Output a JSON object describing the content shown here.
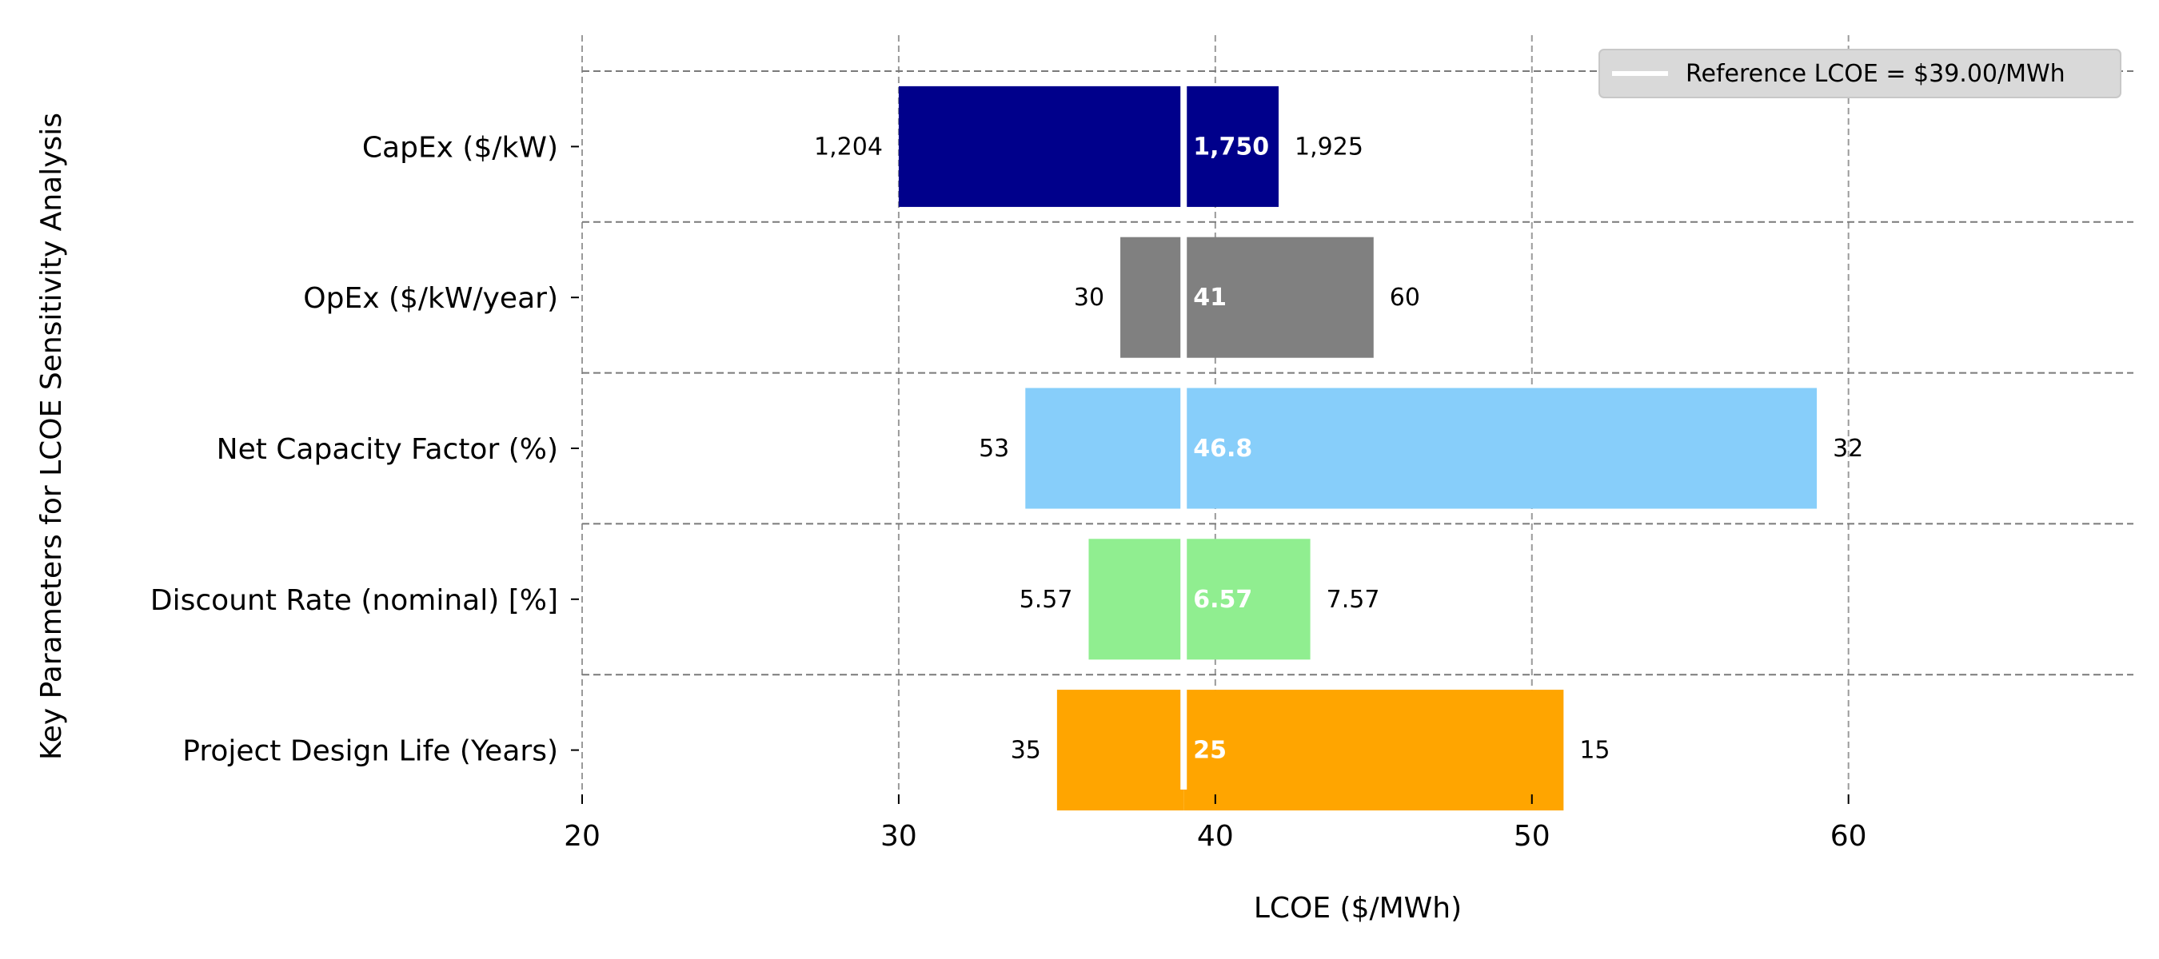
{
  "chart_data": {
    "type": "bar",
    "orientation": "horizontal",
    "chart_subtype": "tornado",
    "xlabel": "LCOE ($/MWh)",
    "ylabel": "Key Parameters for LCOE Sensitivity Analysis",
    "xlim": [
      20,
      69
    ],
    "xticks": [
      "20",
      "30",
      "40",
      "50",
      "60"
    ],
    "grid": true,
    "legend_position": "top-right",
    "reference": {
      "value": 39.0,
      "label": "Reference LCOE = $39.00/MWh",
      "color": "#ffffff"
    },
    "parameters": [
      {
        "name": "CapEx ($/kW)",
        "color": "#00008b",
        "low_lcoe": 30.0,
        "high_lcoe": 42.0,
        "low_label": "1,204",
        "base_label": "1,750",
        "high_label": "1,925"
      },
      {
        "name": "OpEx ($/kW/year)",
        "color": "#808080",
        "low_lcoe": 37.0,
        "high_lcoe": 45.0,
        "low_label": "30",
        "base_label": "41",
        "high_label": "60"
      },
      {
        "name": "Net Capacity Factor (%)",
        "color": "#87cefa",
        "low_lcoe": 34.0,
        "high_lcoe": 59.0,
        "low_label": "53",
        "base_label": "46.8",
        "high_label": "32"
      },
      {
        "name": "Discount Rate (nominal) [%]",
        "color": "#90ee90",
        "low_lcoe": 36.0,
        "high_lcoe": 43.0,
        "low_label": "5.57",
        "base_label": "6.57",
        "high_label": "7.57"
      },
      {
        "name": "Project Design Life (Years)",
        "color": "#ffa500",
        "low_lcoe": 35.0,
        "high_lcoe": 51.0,
        "low_label": "35",
        "base_label": "25",
        "high_label": "15"
      }
    ]
  }
}
